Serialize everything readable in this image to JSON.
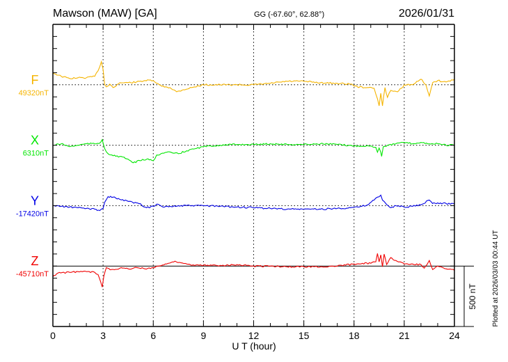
{
  "chart_data": {
    "type": "line",
    "title": "Mawson (MAW)  [GA]",
    "subtitle": "GG (-67.60°,  62.88°)",
    "date": "2026/01/31",
    "xlabel": "U T (hour)",
    "xlim": [
      0,
      24
    ],
    "xticks": [
      "0",
      "3",
      "6",
      "9",
      "12",
      "15",
      "18",
      "21",
      "24"
    ],
    "ylim_nT": [
      0,
      2500
    ],
    "ytick_step_nT": 100,
    "trace_spacing_nT": 500,
    "scale_bar_label": "500 nT",
    "scale_bar_nT": 500,
    "footer": "Plotted at 2026/03/03 00:44 UT",
    "grid": "dotted vertical every 3 hours, dotted baseline per trace",
    "series": [
      {
        "name": "F",
        "baseline_label": "49320nT",
        "color": "#f5b400",
        "points": [
          [
            0,
            99
          ],
          [
            0.5,
            70
          ],
          [
            1,
            52
          ],
          [
            1.5,
            58
          ],
          [
            2,
            58
          ],
          [
            2.5,
            70
          ],
          [
            2.7,
            116
          ],
          [
            2.9,
            191
          ],
          [
            3.0,
            128
          ],
          [
            3.1,
            0
          ],
          [
            3.2,
            -17
          ],
          [
            3.4,
            6
          ],
          [
            3.6,
            -23
          ],
          [
            4,
            17
          ],
          [
            4.5,
            17
          ],
          [
            5,
            23
          ],
          [
            5.5,
            35
          ],
          [
            6,
            35
          ],
          [
            6.2,
            12
          ],
          [
            6.5,
            -12
          ],
          [
            7,
            -23
          ],
          [
            7.4,
            -58
          ],
          [
            7.8,
            -41
          ],
          [
            8.3,
            -23
          ],
          [
            9,
            0
          ],
          [
            10,
            0
          ],
          [
            11,
            0
          ],
          [
            12,
            0
          ],
          [
            13,
            12
          ],
          [
            14,
            29
          ],
          [
            15,
            29
          ],
          [
            16,
            17
          ],
          [
            17,
            12
          ],
          [
            17.8,
            6
          ],
          [
            18.2,
            -17
          ],
          [
            18.8,
            -23
          ],
          [
            19.2,
            -29
          ],
          [
            19.4,
            -116
          ],
          [
            19.5,
            -174
          ],
          [
            19.6,
            -70
          ],
          [
            19.7,
            -174
          ],
          [
            19.85,
            -23
          ],
          [
            20,
            -104
          ],
          [
            20.2,
            -46
          ],
          [
            20.6,
            -58
          ],
          [
            21,
            0
          ],
          [
            21.5,
            0
          ],
          [
            22,
            46
          ],
          [
            22.3,
            0
          ],
          [
            22.5,
            -93
          ],
          [
            22.7,
            17
          ],
          [
            23,
            35
          ],
          [
            23.5,
            23
          ],
          [
            24,
            46
          ]
        ]
      },
      {
        "name": "X",
        "baseline_label": "6310nT",
        "color": "#00e600",
        "points": [
          [
            0,
            0
          ],
          [
            0.5,
            12
          ],
          [
            1,
            -12
          ],
          [
            1.5,
            0
          ],
          [
            2,
            12
          ],
          [
            2.5,
            12
          ],
          [
            2.8,
            17
          ],
          [
            2.95,
            46
          ],
          [
            3.1,
            -29
          ],
          [
            3.3,
            -70
          ],
          [
            3.6,
            -87
          ],
          [
            4,
            -93
          ],
          [
            4.5,
            -116
          ],
          [
            4.8,
            -145
          ],
          [
            5.2,
            -128
          ],
          [
            5.6,
            -116
          ],
          [
            6,
            -128
          ],
          [
            6.2,
            -81
          ],
          [
            6.8,
            -58
          ],
          [
            7.5,
            -70
          ],
          [
            8,
            -46
          ],
          [
            8.5,
            -29
          ],
          [
            9,
            -12
          ],
          [
            10,
            0
          ],
          [
            11,
            6
          ],
          [
            12,
            6
          ],
          [
            13,
            12
          ],
          [
            14,
            6
          ],
          [
            15,
            6
          ],
          [
            16,
            12
          ],
          [
            17,
            6
          ],
          [
            18,
            -6
          ],
          [
            19,
            -6
          ],
          [
            19.3,
            -17
          ],
          [
            19.4,
            -58
          ],
          [
            19.5,
            -23
          ],
          [
            19.6,
            -58
          ],
          [
            19.65,
            -93
          ],
          [
            19.75,
            -12
          ],
          [
            20,
            0
          ],
          [
            20.5,
            12
          ],
          [
            21,
            23
          ],
          [
            21.5,
            12
          ],
          [
            22,
            23
          ],
          [
            22.5,
            12
          ],
          [
            23,
            12
          ],
          [
            23.5,
            0
          ],
          [
            24,
            0
          ]
        ]
      },
      {
        "name": "Y",
        "baseline_label": "-17420nT",
        "color": "#0000e6",
        "points": [
          [
            0,
            0
          ],
          [
            0.5,
            -6
          ],
          [
            1,
            -12
          ],
          [
            1.5,
            -17
          ],
          [
            2,
            -23
          ],
          [
            2.5,
            -29
          ],
          [
            2.8,
            -41
          ],
          [
            3.0,
            -23
          ],
          [
            3.1,
            29
          ],
          [
            3.3,
            75
          ],
          [
            3.6,
            70
          ],
          [
            4,
            52
          ],
          [
            4.5,
            35
          ],
          [
            5,
            23
          ],
          [
            5.3,
            6
          ],
          [
            5.6,
            -17
          ],
          [
            6,
            -6
          ],
          [
            6.2,
            12
          ],
          [
            6.5,
            -6
          ],
          [
            7,
            -6
          ],
          [
            8,
            0
          ],
          [
            9,
            0
          ],
          [
            10,
            -6
          ],
          [
            11,
            -12
          ],
          [
            12,
            -17
          ],
          [
            13,
            -23
          ],
          [
            14,
            -29
          ],
          [
            15,
            -29
          ],
          [
            16,
            -29
          ],
          [
            17,
            -23
          ],
          [
            17.8,
            -17
          ],
          [
            18.3,
            -12
          ],
          [
            18.8,
            6
          ],
          [
            19.2,
            46
          ],
          [
            19.4,
            70
          ],
          [
            19.6,
            87
          ],
          [
            19.7,
            46
          ],
          [
            19.9,
            17
          ],
          [
            20.2,
            -17
          ],
          [
            20.5,
            0
          ],
          [
            21,
            -12
          ],
          [
            21.5,
            -6
          ],
          [
            22,
            6
          ],
          [
            22.5,
            46
          ],
          [
            22.7,
            17
          ],
          [
            23,
            23
          ],
          [
            23.5,
            17
          ],
          [
            24,
            17
          ]
        ]
      },
      {
        "name": "Z",
        "baseline_label": "-45710nT",
        "color": "#f00000",
        "points": [
          [
            0,
            -87
          ],
          [
            0.3,
            -58
          ],
          [
            1,
            -52
          ],
          [
            1.5,
            -46
          ],
          [
            2,
            -46
          ],
          [
            2.5,
            -52
          ],
          [
            2.7,
            -70
          ],
          [
            2.85,
            -128
          ],
          [
            2.95,
            -174
          ],
          [
            3.05,
            -81
          ],
          [
            3.2,
            -12
          ],
          [
            3.5,
            -29
          ],
          [
            4,
            -17
          ],
          [
            4.5,
            -23
          ],
          [
            5,
            -12
          ],
          [
            5.5,
            -23
          ],
          [
            6,
            -12
          ],
          [
            6.3,
            0
          ],
          [
            6.8,
            17
          ],
          [
            7.3,
            41
          ],
          [
            8,
            17
          ],
          [
            8.3,
            6
          ],
          [
            9,
            6
          ],
          [
            10,
            6
          ],
          [
            11,
            12
          ],
          [
            12,
            0
          ],
          [
            13,
            0
          ],
          [
            14,
            -6
          ],
          [
            15,
            -6
          ],
          [
            16,
            -6
          ],
          [
            17,
            0
          ],
          [
            18,
            17
          ],
          [
            18.5,
            23
          ],
          [
            19,
            23
          ],
          [
            19.3,
            35
          ],
          [
            19.4,
            104
          ],
          [
            19.5,
            35
          ],
          [
            19.6,
            93
          ],
          [
            19.7,
            -6
          ],
          [
            19.8,
            99
          ],
          [
            19.95,
            12
          ],
          [
            20.2,
            70
          ],
          [
            20.5,
            46
          ],
          [
            21,
            17
          ],
          [
            21.5,
            17
          ],
          [
            22,
            12
          ],
          [
            22.2,
            -17
          ],
          [
            22.5,
            46
          ],
          [
            22.7,
            -29
          ],
          [
            23,
            0
          ],
          [
            23.5,
            -23
          ],
          [
            24,
            -35
          ]
        ]
      }
    ]
  }
}
